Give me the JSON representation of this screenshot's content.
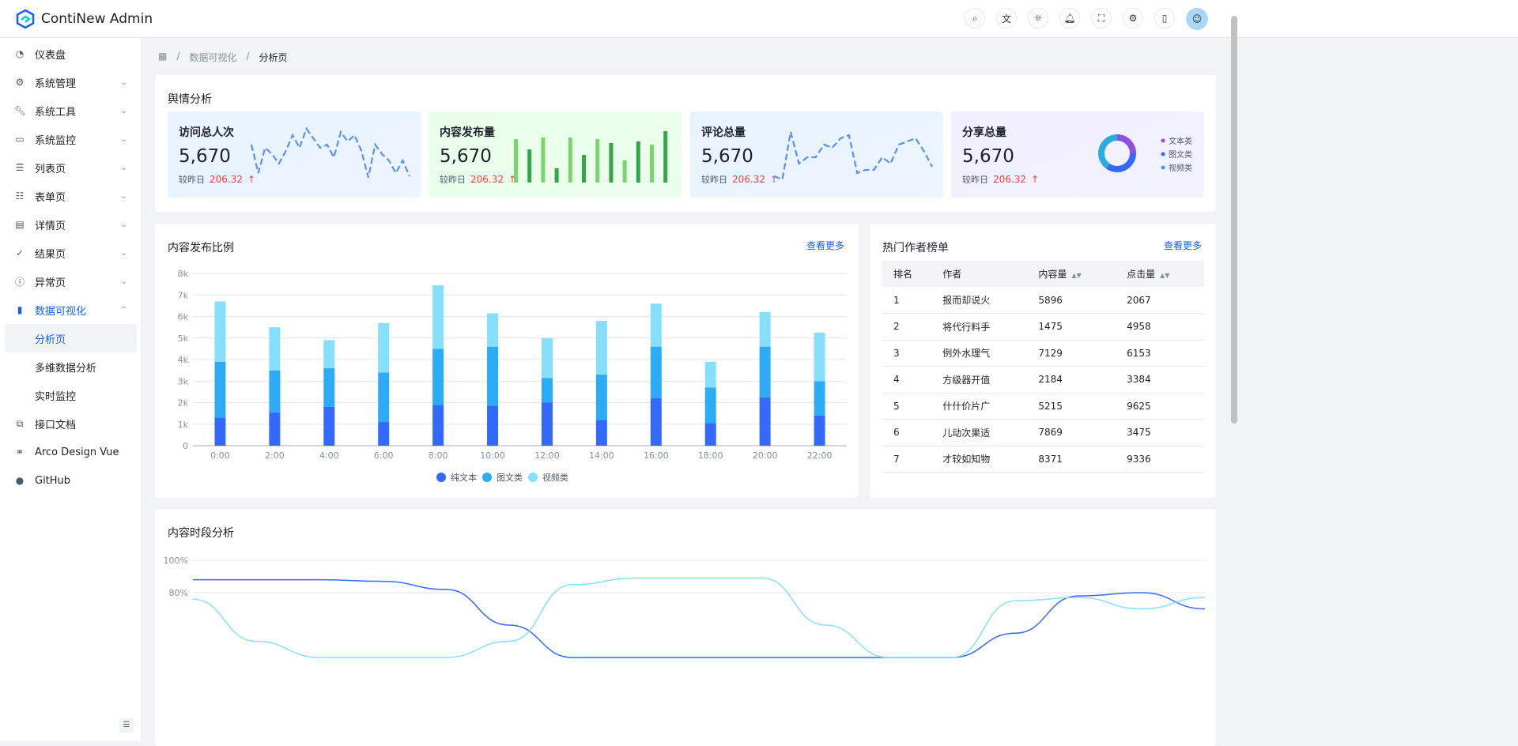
{
  "app": {
    "title": "ContiNew Admin"
  },
  "header": {
    "icons": [
      "search-icon",
      "translate-icon",
      "theme-icon",
      "bell-icon",
      "fullscreen-icon",
      "settings-icon",
      "docs-icon"
    ]
  },
  "sidebar": {
    "items": [
      {
        "label": "仪表盘",
        "icon": "dashboard-icon"
      },
      {
        "label": "系统管理",
        "icon": "gear-icon",
        "chev": "⌄"
      },
      {
        "label": "系统工具",
        "icon": "wrench-icon",
        "chev": "⌄"
      },
      {
        "label": "系统监控",
        "icon": "monitor-icon",
        "chev": "⌄"
      },
      {
        "label": "列表页",
        "icon": "list-icon",
        "chev": "⌄"
      },
      {
        "label": "表单页",
        "icon": "form-icon",
        "chev": "⌄"
      },
      {
        "label": "详情页",
        "icon": "file-icon",
        "chev": "⌄"
      },
      {
        "label": "结果页",
        "icon": "check-circle-icon",
        "chev": "⌄"
      },
      {
        "label": "异常页",
        "icon": "exclamation-icon",
        "chev": "⌄"
      },
      {
        "label": "数据可视化",
        "icon": "chart-icon",
        "chev": "⌃"
      }
    ],
    "sub": [
      "分析页",
      "多维数据分析",
      "实时监控"
    ],
    "bottom": [
      {
        "label": "接口文档",
        "icon": "api-doc-icon"
      },
      {
        "label": "Arco Design Vue",
        "icon": "link-icon"
      },
      {
        "label": "GitHub",
        "icon": "github-icon"
      }
    ]
  },
  "breadcrumb": [
    "数据可视化",
    "分析页"
  ],
  "opinion": {
    "title": "舆情分析",
    "compare_label": "较昨日",
    "cards": [
      {
        "title": "访问总人次",
        "value": "5,670",
        "delta": "206.32",
        "bg": "#e8f3ff",
        "spark": [
          60,
          15,
          55,
          45,
          30,
          50,
          75,
          55,
          85,
          70,
          55,
          60,
          40,
          80,
          65,
          75,
          50,
          8,
          60,
          45,
          35,
          15,
          35,
          10
        ]
      },
      {
        "title": "内容发布量",
        "value": "5,670",
        "delta": "206.32",
        "bg": "#e8ffea",
        "bars": [
          55,
          42,
          57,
          18,
          57,
          35,
          55,
          50,
          28,
          52,
          48,
          65
        ]
      },
      {
        "title": "评论总量",
        "value": "5,670",
        "delta": "206.32",
        "bg": "#e8f3ff",
        "spark": [
          10,
          5,
          80,
          30,
          40,
          40,
          60,
          55,
          70,
          75,
          15,
          20,
          20,
          40,
          30,
          60,
          65,
          70,
          50,
          25
        ]
      },
      {
        "title": "分享总量",
        "value": "5,670",
        "delta": "206.32",
        "bg": "#f1efff",
        "pie": [
          {
            "label": "文本类",
            "value": 25,
            "color": "#8e51da"
          },
          {
            "label": "图文类",
            "value": 35,
            "color": "#3469ff"
          },
          {
            "label": "视频类",
            "value": 40,
            "color": "#2cabe3"
          }
        ]
      }
    ]
  },
  "publish": {
    "title": "内容发布比例",
    "more": "查看更多"
  },
  "chart_data": [
    {
      "type": "bar",
      "stacked": true,
      "categories": [
        "0:00",
        "2:00",
        "4:00",
        "6:00",
        "8:00",
        "10:00",
        "12:00",
        "14:00",
        "16:00",
        "18:00",
        "20:00",
        "22:00"
      ],
      "series": [
        {
          "name": "纯文本",
          "color": "#3469ff",
          "values": [
            1300,
            1550,
            1800,
            1100,
            1900,
            1850,
            2000,
            1200,
            2200,
            1050,
            2250,
            1400
          ]
        },
        {
          "name": "图文类",
          "color": "#2cabf7",
          "values": [
            2600,
            1950,
            1800,
            2300,
            2600,
            2750,
            1150,
            2100,
            2400,
            1650,
            2350,
            1600
          ]
        },
        {
          "name": "视频类",
          "color": "#86dffd",
          "values": [
            2800,
            2000,
            1300,
            2300,
            2950,
            1550,
            1850,
            2500,
            2000,
            1200,
            1600,
            2250
          ]
        }
      ],
      "yticks": [
        "0",
        "1k",
        "2k",
        "3k",
        "4k",
        "5k",
        "6k",
        "7k",
        "8k"
      ],
      "ylim": [
        0,
        8000
      ],
      "grid": true,
      "legend": "bottom"
    },
    {
      "type": "line",
      "title": "内容时段分析",
      "yticks": [
        "100%",
        "80%"
      ],
      "series": [
        {
          "color": "#3469ff",
          "values": [
            88,
            88,
            88,
            87,
            82,
            60,
            40,
            40,
            40,
            40,
            40,
            40,
            40,
            55,
            78,
            80,
            70
          ]
        },
        {
          "color": "#86dffd",
          "values": [
            76,
            50,
            40,
            40,
            40,
            50,
            85,
            89,
            89,
            89,
            60,
            40,
            40,
            75,
            77,
            70,
            77
          ]
        }
      ]
    }
  ],
  "authors": {
    "title": "热门作者榜单",
    "more": "查看更多",
    "columns": [
      "排名",
      "作者",
      "内容量",
      "点击量"
    ],
    "rows": [
      [
        "1",
        "报而却说火",
        "5896",
        "2067"
      ],
      [
        "2",
        "将代行料手",
        "1475",
        "4958"
      ],
      [
        "3",
        "例外水理气",
        "7129",
        "6153"
      ],
      [
        "4",
        "方级器开值",
        "2184",
        "3384"
      ],
      [
        "5",
        "什什价片广",
        "5215",
        "9625"
      ],
      [
        "6",
        "儿动次果适",
        "7869",
        "3475"
      ],
      [
        "7",
        "才较如知物",
        "8371",
        "9336"
      ]
    ]
  },
  "timeline": {
    "title": "内容时段分析"
  }
}
